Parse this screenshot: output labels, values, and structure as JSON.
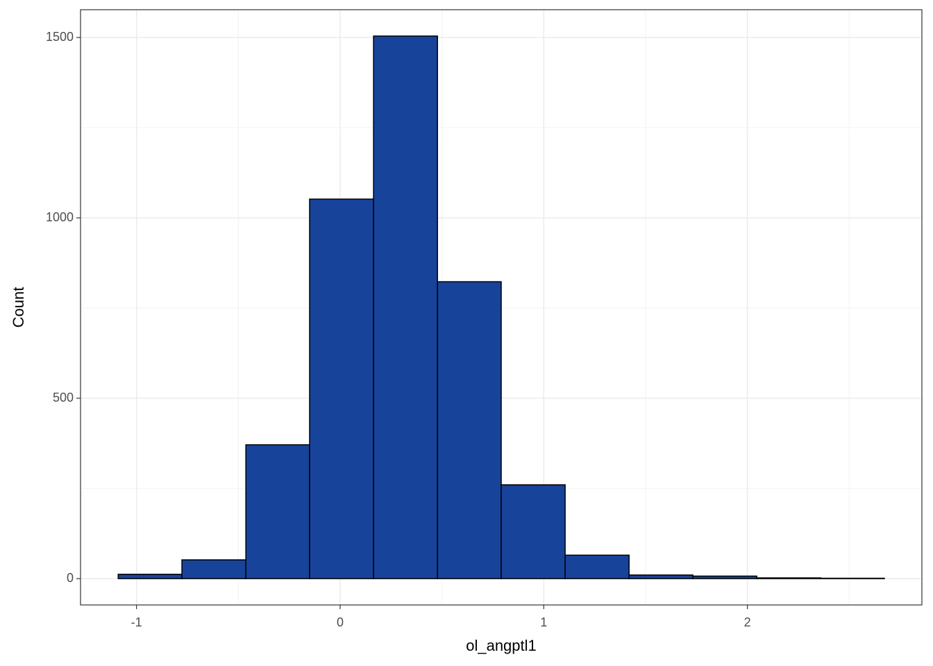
{
  "chart_data": {
    "type": "histogram",
    "x_label": "ol_angptl1",
    "y_label": "Count",
    "bins": [
      -1.09,
      -0.777,
      -0.463,
      -0.15,
      0.164,
      0.478,
      0.791,
      1.105,
      1.419,
      1.732,
      2.046,
      2.36,
      2.673
    ],
    "values": [
      12,
      52,
      371,
      1052,
      1504,
      823,
      260,
      65,
      10,
      7,
      2,
      1
    ],
    "color": "#18439a",
    "edge_color": "#000000",
    "xlim": [
      -1.275,
      2.857
    ],
    "xticks": [
      -1,
      0,
      1,
      2
    ],
    "xminor": [
      -0.5,
      0.5,
      1.5,
      2.5
    ],
    "ylim": [
      -73,
      1577
    ],
    "yticks": [
      0,
      500,
      1000,
      1500
    ],
    "yminor": [
      250,
      750,
      1250
    ],
    "grid": true
  }
}
